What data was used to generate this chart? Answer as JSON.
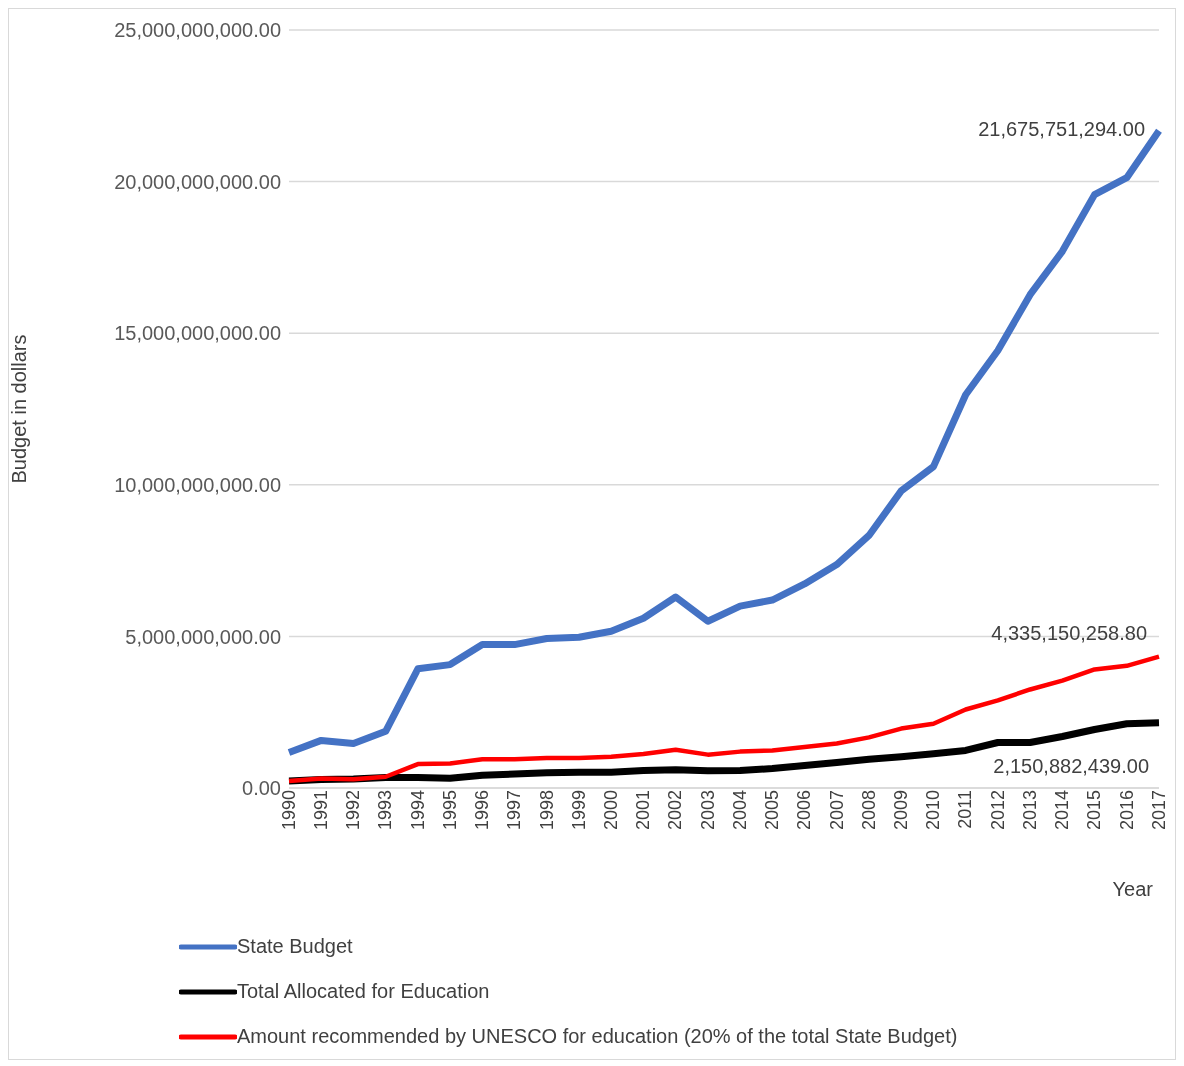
{
  "chart_data": {
    "type": "line",
    "xlabel": "Year",
    "ylabel": "Budget in dollars",
    "categories": [
      "1990",
      "1991",
      "1992",
      "1993",
      "1994",
      "1995",
      "1996",
      "1997",
      "1998",
      "1999",
      "2000",
      "2001",
      "2002",
      "2003",
      "2004",
      "2005",
      "2006",
      "2007",
      "2008",
      "2009",
      "2010",
      "2011",
      "2012",
      "2013",
      "2014",
      "2015",
      "2016",
      "2017"
    ],
    "ylim": [
      0,
      25000000000
    ],
    "yticks": [
      {
        "value": 0,
        "label": "0.00"
      },
      {
        "value": 5000000000,
        "label": "5,000,000,000.00"
      },
      {
        "value": 10000000000,
        "label": "10,000,000,000.00"
      },
      {
        "value": 15000000000,
        "label": "15,000,000,000.00"
      },
      {
        "value": 20000000000,
        "label": "20,000,000,000.00"
      },
      {
        "value": 25000000000,
        "label": "25,000,000,000.00"
      }
    ],
    "grid": "y",
    "legend": "bottom left",
    "marker": "none",
    "line_style": "solid",
    "series": [
      {
        "name": "State Budget",
        "color": "#4472c4",
        "values": [
          1170000000,
          1570000000,
          1470000000,
          1870000000,
          3930000000,
          4070000000,
          4730000000,
          4730000000,
          4930000000,
          4970000000,
          5170000000,
          5600000000,
          6300000000,
          5500000000,
          6000000000,
          6200000000,
          6730000000,
          7370000000,
          8330000000,
          9800000000,
          10600000000,
          12970000000,
          14430000000,
          16270000000,
          17700000000,
          19570000000,
          20130000000,
          21675751294
        ],
        "value_labels": [
          null,
          null,
          null,
          null,
          null,
          null,
          null,
          null,
          null,
          null,
          null,
          null,
          null,
          null,
          null,
          null,
          null,
          null,
          null,
          null,
          null,
          null,
          null,
          null,
          null,
          null,
          null,
          "21,675,751,294.00"
        ]
      },
      {
        "name": "Total Allocated for Education",
        "color": "#000000",
        "values": [
          230000000,
          280000000,
          300000000,
          350000000,
          350000000,
          320000000,
          420000000,
          460000000,
          500000000,
          520000000,
          520000000,
          580000000,
          600000000,
          570000000,
          580000000,
          640000000,
          740000000,
          840000000,
          950000000,
          1030000000,
          1130000000,
          1240000000,
          1500000000,
          1500000000,
          1700000000,
          1930000000,
          2120000000,
          2150882439
        ],
        "value_labels": [
          null,
          null,
          null,
          null,
          null,
          null,
          null,
          null,
          null,
          null,
          null,
          null,
          null,
          null,
          null,
          null,
          null,
          null,
          null,
          null,
          null,
          null,
          null,
          null,
          null,
          null,
          null,
          "2,150,882,439.00"
        ]
      },
      {
        "name": "Amount recommended by UNESCO for education (20% of the total State Budget)",
        "color": "#ff0000",
        "values": [
          230000000,
          310000000,
          290000000,
          370000000,
          790000000,
          810000000,
          950000000,
          950000000,
          990000000,
          990000000,
          1030000000,
          1120000000,
          1260000000,
          1100000000,
          1200000000,
          1240000000,
          1350000000,
          1470000000,
          1670000000,
          1960000000,
          2120000000,
          2590000000,
          2890000000,
          3250000000,
          3540000000,
          3910000000,
          4030000000,
          4335150258.8
        ],
        "value_labels": [
          null,
          null,
          null,
          null,
          null,
          null,
          null,
          null,
          null,
          null,
          null,
          null,
          null,
          null,
          null,
          null,
          null,
          null,
          null,
          null,
          null,
          null,
          null,
          null,
          null,
          null,
          null,
          "4,335,150,258.80"
        ]
      }
    ]
  }
}
